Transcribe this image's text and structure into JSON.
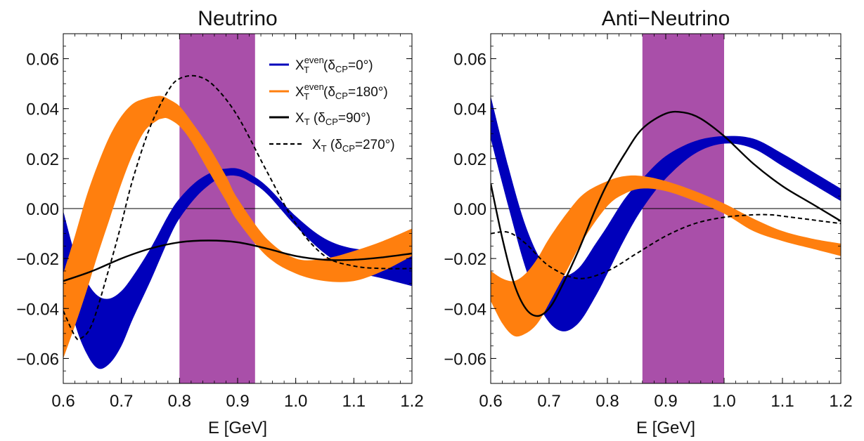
{
  "colors": {
    "blue": "#0000bb",
    "orange": "#ff7f0e",
    "purple": "#a94fa9",
    "black": "#000000"
  },
  "legend": {
    "items": [
      {
        "id": "even0",
        "main": "X",
        "sub": "T",
        "sup": "even",
        "param": "(δ",
        "psub": "CP",
        "val": "=0°)"
      },
      {
        "id": "even180",
        "main": "X",
        "sub": "T",
        "sup": "even",
        "param": "(δ",
        "psub": "CP",
        "val": "=180°)"
      },
      {
        "id": "t90",
        "main": "X",
        "sub": "T",
        "sup": "",
        "param": " (δ",
        "psub": "CP",
        "val": "=90°)"
      },
      {
        "id": "t270",
        "main": "X",
        "sub": "T",
        "sup": "",
        "param": " (δ",
        "psub": "CP",
        "val": "=270°)"
      }
    ]
  },
  "chart_data": [
    {
      "type": "line",
      "title": "Neutrino",
      "xlabel": "E [GeV]",
      "ylabel": "",
      "xlim": [
        0.6,
        1.2
      ],
      "ylim": [
        -0.07,
        0.07
      ],
      "xticks": [
        "0.6",
        "0.7",
        "0.8",
        "0.9",
        "1.0",
        "1.1",
        "1.2"
      ],
      "yticks": [
        "-0.06",
        "-0.04",
        "-0.02",
        "0.00",
        "0.02",
        "0.04",
        "0.06"
      ],
      "shaded_band": [
        0.8,
        0.93
      ],
      "legend_position": "top-right",
      "bands": [
        {
          "color_key": "blue",
          "x": [
            0.6,
            0.62,
            0.64,
            0.66,
            0.68,
            0.7,
            0.72,
            0.75,
            0.78,
            0.8,
            0.83,
            0.86,
            0.88,
            0.9,
            0.92,
            0.95,
            1.0,
            1.05,
            1.1,
            1.15,
            1.2
          ],
          "upper": [
            -0.001,
            -0.018,
            -0.029,
            -0.035,
            -0.036,
            -0.033,
            -0.027,
            -0.016,
            -0.003,
            0.004,
            0.011,
            0.015,
            0.016,
            0.016,
            0.014,
            0.009,
            -0.003,
            -0.012,
            -0.016,
            -0.016,
            -0.014
          ],
          "lower": [
            -0.026,
            -0.046,
            -0.058,
            -0.064,
            -0.062,
            -0.055,
            -0.044,
            -0.029,
            -0.013,
            -0.004,
            0.005,
            0.011,
            0.013,
            0.013,
            0.011,
            0.006,
            -0.007,
            -0.018,
            -0.025,
            -0.028,
            -0.031
          ]
        },
        {
          "color_key": "orange",
          "x": [
            0.6,
            0.62,
            0.64,
            0.66,
            0.68,
            0.7,
            0.72,
            0.74,
            0.76,
            0.77,
            0.78,
            0.8,
            0.82,
            0.85,
            0.88,
            0.9,
            0.95,
            1.0,
            1.05,
            1.1,
            1.15,
            1.2
          ],
          "upper": [
            -0.026,
            -0.011,
            0.005,
            0.018,
            0.029,
            0.037,
            0.042,
            0.044,
            0.045,
            0.045,
            0.044,
            0.041,
            0.035,
            0.025,
            0.013,
            0.004,
            -0.012,
            -0.02,
            -0.02,
            -0.017,
            -0.013,
            -0.008
          ],
          "lower": [
            -0.06,
            -0.047,
            -0.033,
            -0.018,
            -0.004,
            0.01,
            0.022,
            0.031,
            0.035,
            0.036,
            0.036,
            0.033,
            0.027,
            0.015,
            0.003,
            -0.005,
            -0.019,
            -0.026,
            -0.029,
            -0.029,
            -0.025,
            -0.019
          ]
        }
      ],
      "lines": [
        {
          "color_key": "black",
          "dash": false,
          "x": [
            0.6,
            0.65,
            0.7,
            0.75,
            0.8,
            0.85,
            0.9,
            0.95,
            1.0,
            1.05,
            1.1,
            1.15,
            1.2
          ],
          "y": [
            -0.029,
            -0.025,
            -0.02,
            -0.016,
            -0.0135,
            -0.0128,
            -0.0135,
            -0.016,
            -0.019,
            -0.0205,
            -0.0205,
            -0.0195,
            -0.018
          ]
        },
        {
          "color_key": "black",
          "dash": true,
          "x": [
            0.6,
            0.62,
            0.63,
            0.65,
            0.68,
            0.7,
            0.72,
            0.75,
            0.78,
            0.8,
            0.83,
            0.86,
            0.9,
            0.95,
            1.0,
            1.05,
            1.1,
            1.15,
            1.2
          ],
          "y": [
            -0.041,
            -0.051,
            -0.052,
            -0.046,
            -0.023,
            -0.006,
            0.012,
            0.033,
            0.047,
            0.052,
            0.053,
            0.049,
            0.037,
            0.015,
            -0.006,
            -0.019,
            -0.023,
            -0.024,
            -0.024
          ]
        }
      ]
    },
    {
      "type": "line",
      "title": "Anti−Neutrino",
      "xlabel": "E [GeV]",
      "ylabel": "",
      "xlim": [
        0.6,
        1.2
      ],
      "ylim": [
        -0.07,
        0.07
      ],
      "xticks": [
        "0.6",
        "0.7",
        "0.8",
        "0.9",
        "1.0",
        "1.1",
        "1.2"
      ],
      "yticks": [
        "-0.06",
        "-0.04",
        "-0.02",
        "0.00",
        "0.02",
        "0.04",
        "0.06"
      ],
      "shaded_band": [
        0.86,
        1.0
      ],
      "bands": [
        {
          "color_key": "blue",
          "x": [
            0.6,
            0.63,
            0.66,
            0.69,
            0.72,
            0.75,
            0.78,
            0.8,
            0.83,
            0.86,
            0.9,
            0.95,
            1.0,
            1.05,
            1.1,
            1.15,
            1.2
          ],
          "upper": [
            0.045,
            0.017,
            -0.007,
            -0.022,
            -0.027,
            -0.024,
            -0.014,
            -0.007,
            0.004,
            0.012,
            0.021,
            0.027,
            0.029,
            0.028,
            0.022,
            0.015,
            0.008
          ],
          "lower": [
            0.028,
            0.001,
            -0.024,
            -0.042,
            -0.049,
            -0.046,
            -0.035,
            -0.026,
            -0.012,
            0.0,
            0.012,
            0.022,
            0.026,
            0.024,
            0.017,
            0.01,
            0.003
          ]
        },
        {
          "color_key": "orange",
          "x": [
            0.6,
            0.62,
            0.64,
            0.66,
            0.68,
            0.7,
            0.73,
            0.76,
            0.8,
            0.83,
            0.86,
            0.9,
            0.95,
            1.0,
            1.05,
            1.1,
            1.15,
            1.2
          ],
          "upper": [
            -0.025,
            -0.028,
            -0.029,
            -0.026,
            -0.02,
            -0.012,
            -0.002,
            0.006,
            0.011,
            0.013,
            0.013,
            0.011,
            0.007,
            0.002,
            -0.004,
            -0.009,
            -0.012,
            -0.014
          ],
          "lower": [
            -0.037,
            -0.046,
            -0.051,
            -0.05,
            -0.046,
            -0.038,
            -0.025,
            -0.012,
            0.001,
            0.006,
            0.008,
            0.007,
            0.003,
            -0.002,
            -0.009,
            -0.013,
            -0.016,
            -0.019
          ]
        }
      ],
      "lines": [
        {
          "color_key": "black",
          "dash": false,
          "x": [
            0.6,
            0.62,
            0.64,
            0.66,
            0.68,
            0.7,
            0.72,
            0.75,
            0.78,
            0.8,
            0.83,
            0.86,
            0.9,
            0.93,
            0.96,
            1.0,
            1.05,
            1.1,
            1.15,
            1.2
          ],
          "y": [
            0.01,
            -0.012,
            -0.03,
            -0.04,
            -0.043,
            -0.04,
            -0.032,
            -0.017,
            -0.0,
            0.01,
            0.022,
            0.032,
            0.038,
            0.0385,
            0.036,
            0.029,
            0.018,
            0.009,
            0.002,
            -0.005
          ]
        },
        {
          "color_key": "black",
          "dash": true,
          "x": [
            0.6,
            0.63,
            0.66,
            0.7,
            0.75,
            0.8,
            0.85,
            0.9,
            0.95,
            1.0,
            1.05,
            1.08,
            1.1,
            1.15,
            1.2
          ],
          "y": [
            -0.01,
            -0.0095,
            -0.014,
            -0.023,
            -0.028,
            -0.025,
            -0.018,
            -0.011,
            -0.006,
            -0.0035,
            -0.0025,
            -0.0025,
            -0.003,
            -0.0045,
            -0.006
          ]
        }
      ]
    }
  ]
}
